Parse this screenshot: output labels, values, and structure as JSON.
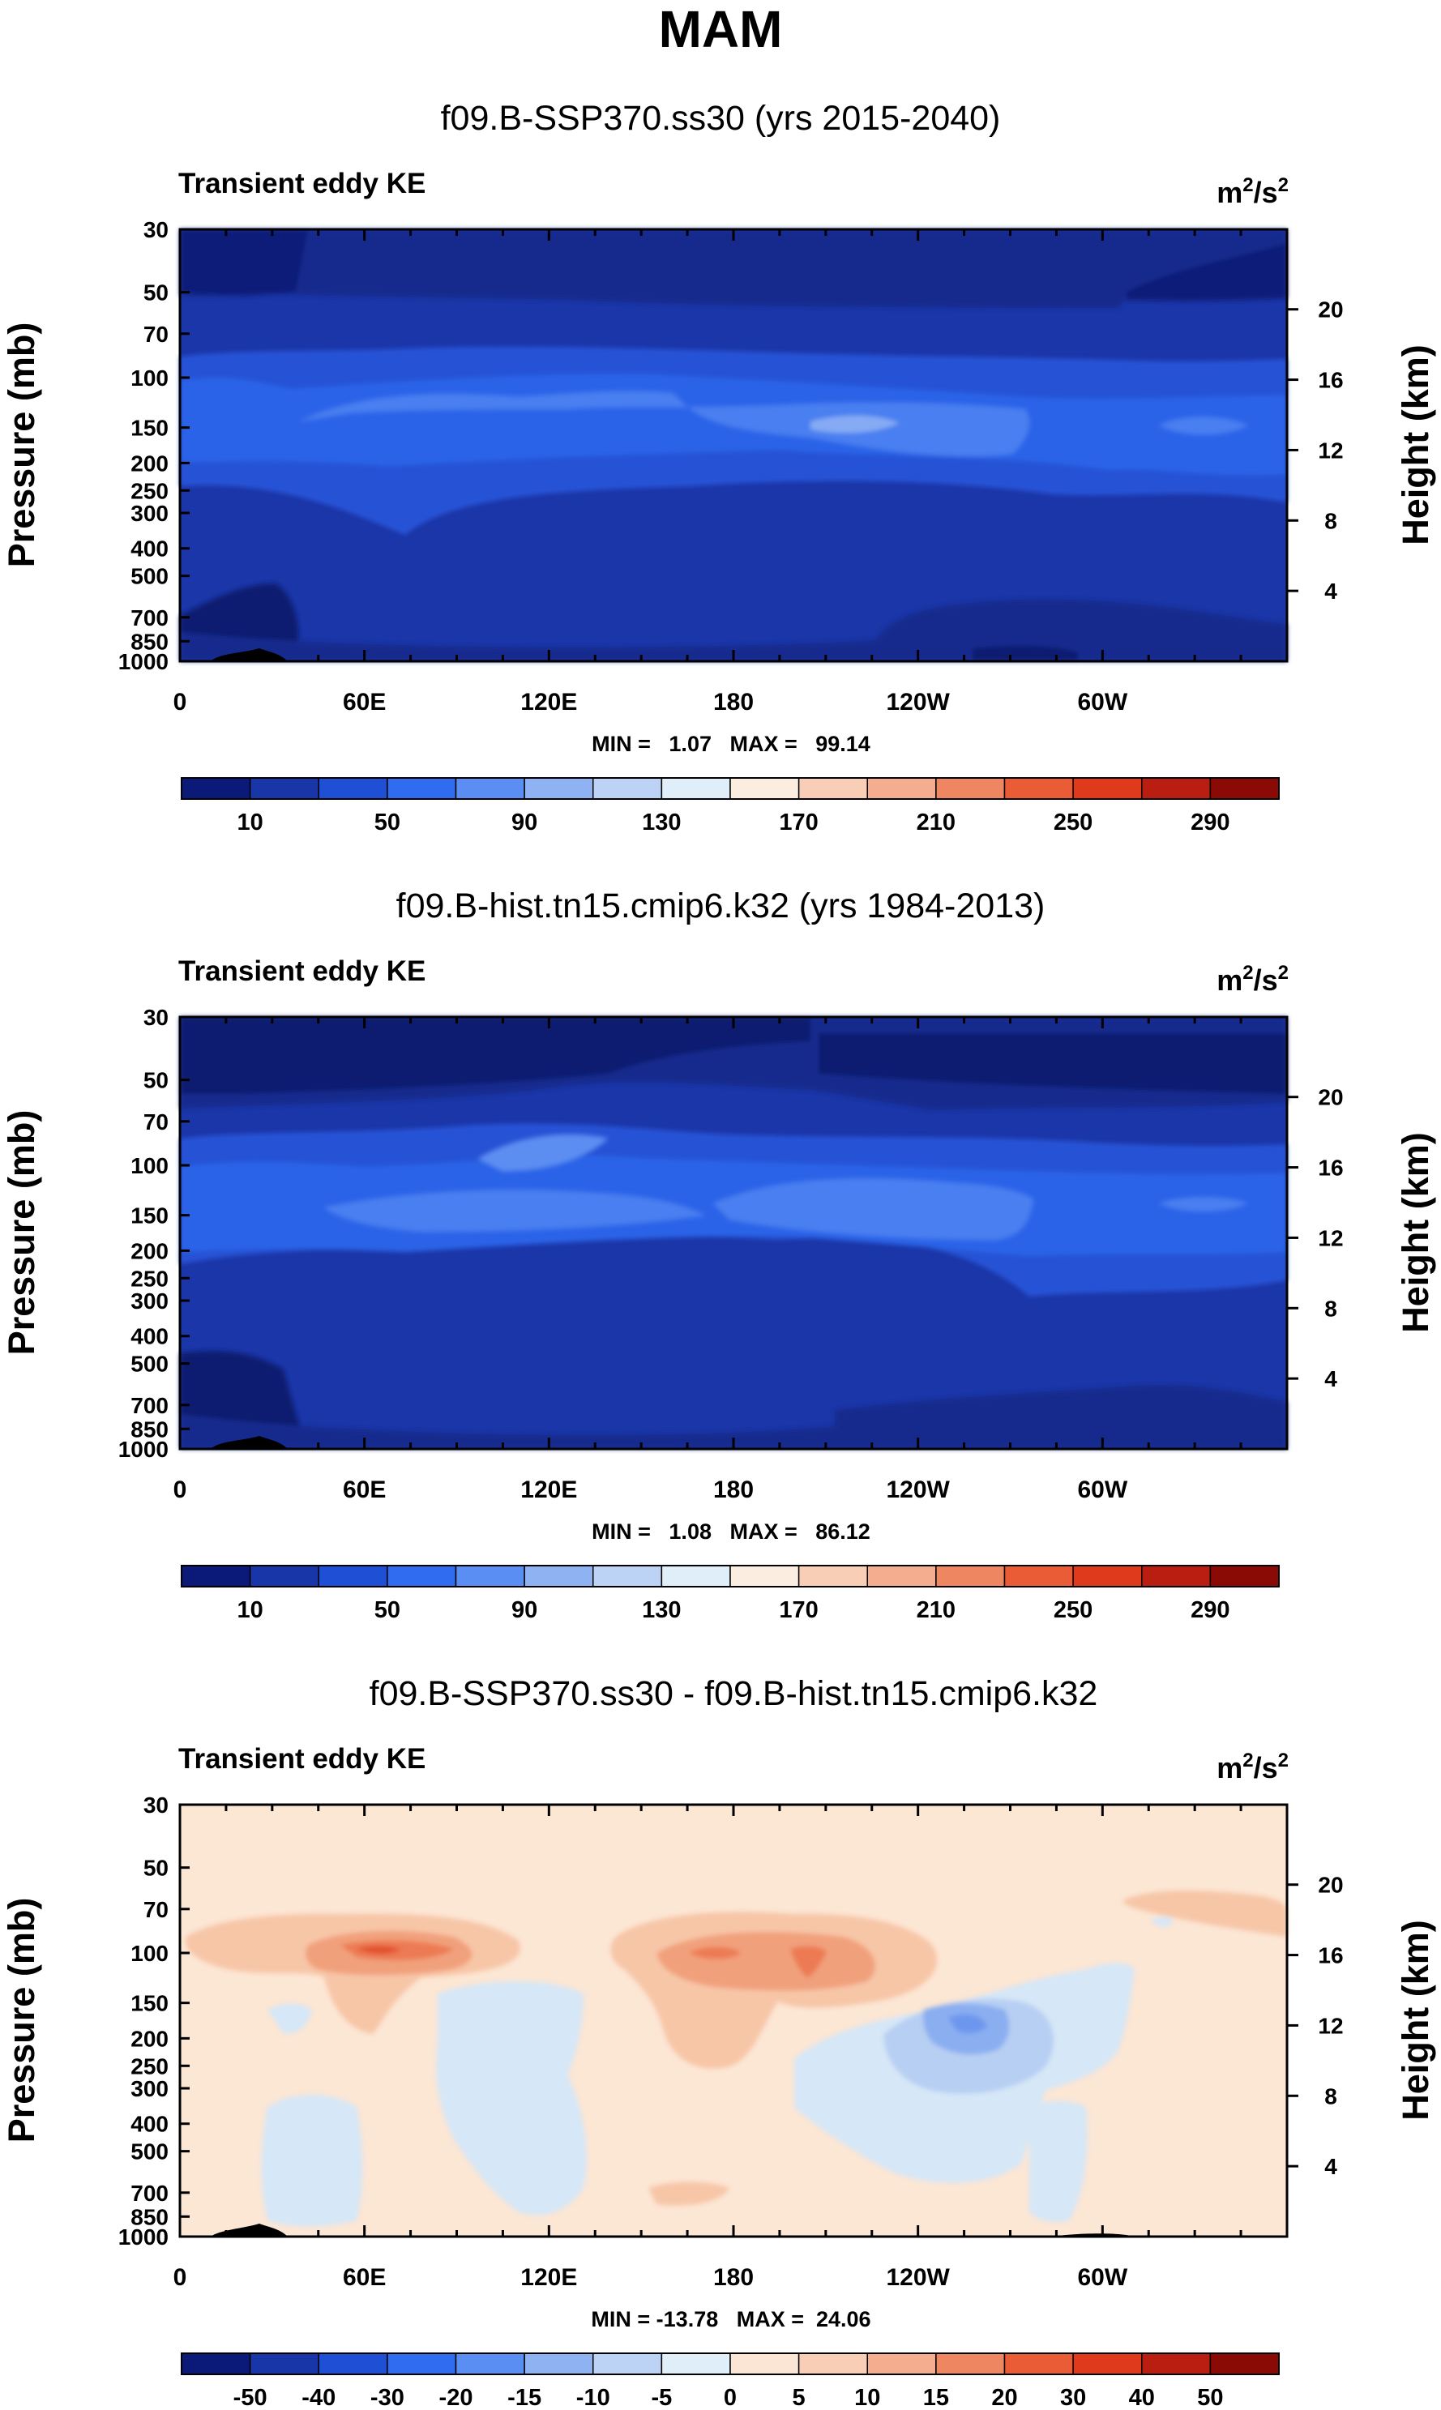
{
  "figure_title": "MAM",
  "colors": {
    "abs_bar": [
      "#0b1a78",
      "#1836a8",
      "#1f4fd4",
      "#2f6cf0",
      "#5a8ef2",
      "#8fb2f2",
      "#bcd3f5",
      "#e0eefa",
      "#fbeee0",
      "#f8cfb6",
      "#f4ad8f",
      "#ef8662",
      "#ea5c35",
      "#df3a1c",
      "#b91e10",
      "#8a0b05"
    ],
    "diff_bar": [
      "#0b1a78",
      "#1836a8",
      "#1f4fd4",
      "#2f6cf0",
      "#5a8ef2",
      "#8fb2f2",
      "#bcd3f5",
      "#e0eefa",
      "#fbe6d5",
      "#f8cfb6",
      "#f4ad8f",
      "#ef8662",
      "#ea5c35",
      "#df3a1c",
      "#b91e10",
      "#8a0b05"
    ],
    "fill_base_top": "#1a2f9a",
    "fill_base_mid": "#1f3fb8",
    "fill_jet": "#2e5fe0",
    "fill_jet_core": "#5688ee",
    "fill_diff_bg": "#fce6d4"
  },
  "chart_data": [
    {
      "type": "heatmap",
      "title": "f09.B-SSP370.ss30 (yrs 2015-2040)",
      "left_label": "Transient eddy KE",
      "units_base": "m",
      "units_sup1": "2",
      "units_mid": "/s",
      "units_sup2": "2",
      "ylabel": "Pressure (mb)",
      "ylabel_right": "Height (km)",
      "pressure_ticks": [
        30,
        50,
        70,
        100,
        150,
        200,
        250,
        300,
        400,
        500,
        700,
        850,
        1000
      ],
      "height_ticks": [
        4,
        8,
        12,
        16,
        20
      ],
      "x_ticks": [
        "0",
        "60E",
        "120E",
        "180",
        "120W",
        "60W"
      ],
      "stats": "MIN =   1.07   MAX =   99.14",
      "colorbar_labels": [
        "10",
        "50",
        "90",
        "130",
        "170",
        "210",
        "250",
        "290"
      ],
      "min": 1.07,
      "max": 99.14
    },
    {
      "type": "heatmap",
      "title": "f09.B-hist.tn15.cmip6.k32 (yrs 1984-2013)",
      "left_label": "Transient eddy KE",
      "units_base": "m",
      "units_sup1": "2",
      "units_mid": "/s",
      "units_sup2": "2",
      "ylabel": "Pressure (mb)",
      "ylabel_right": "Height (km)",
      "pressure_ticks": [
        30,
        50,
        70,
        100,
        150,
        200,
        250,
        300,
        400,
        500,
        700,
        850,
        1000
      ],
      "height_ticks": [
        4,
        8,
        12,
        16,
        20
      ],
      "x_ticks": [
        "0",
        "60E",
        "120E",
        "180",
        "120W",
        "60W"
      ],
      "stats": "MIN =   1.08   MAX =   86.12",
      "colorbar_labels": [
        "10",
        "50",
        "90",
        "130",
        "170",
        "210",
        "250",
        "290"
      ],
      "min": 1.08,
      "max": 86.12
    },
    {
      "type": "heatmap",
      "title": "f09.B-SSP370.ss30 - f09.B-hist.tn15.cmip6.k32",
      "left_label": "Transient eddy KE",
      "units_base": "m",
      "units_sup1": "2",
      "units_mid": "/s",
      "units_sup2": "2",
      "ylabel": "Pressure (mb)",
      "ylabel_right": "Height (km)",
      "pressure_ticks": [
        30,
        50,
        70,
        100,
        150,
        200,
        250,
        300,
        400,
        500,
        700,
        850,
        1000
      ],
      "height_ticks": [
        4,
        8,
        12,
        16,
        20
      ],
      "x_ticks": [
        "0",
        "60E",
        "120E",
        "180",
        "120W",
        "60W"
      ],
      "stats": "MIN = -13.78   MAX =  24.06",
      "colorbar_labels": [
        "-50",
        "-40",
        "-30",
        "-20",
        "-15",
        "-10",
        "-5",
        "0",
        "5",
        "10",
        "15",
        "20",
        "30",
        "40",
        "50"
      ],
      "min": -13.78,
      "max": 24.06
    }
  ]
}
